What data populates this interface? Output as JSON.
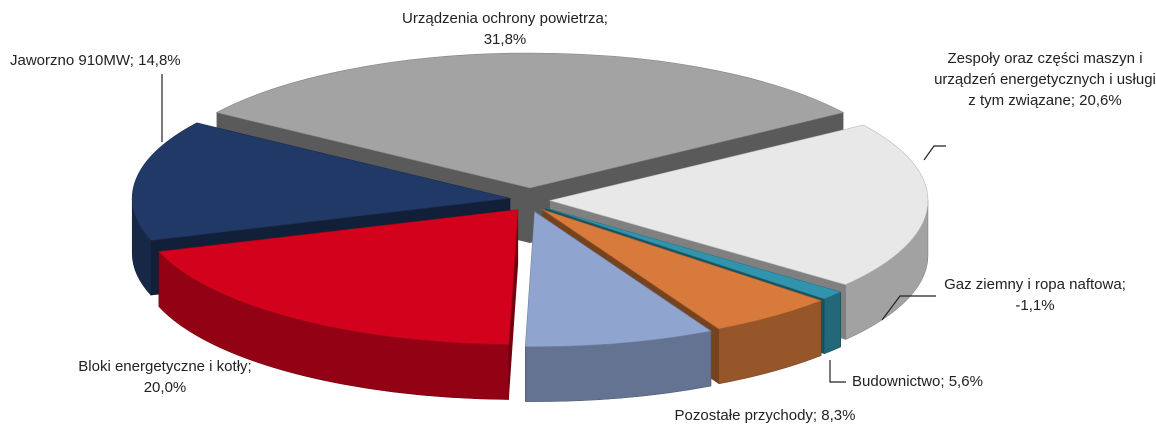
{
  "chart_data": {
    "type": "pie",
    "values": [
      31.8,
      20.6,
      -1.1,
      5.6,
      8.3,
      20.0,
      14.8
    ],
    "value_labels": [
      "Urządzenia ochrony powietrza; 31,8%",
      "Zespoły oraz części maszyn i urządzeń energetycznych i usługi z tym związane; 20,6%",
      "Gaz ziemny i ropa naftowa; -1,1%",
      "Budownictwo; 5,6%",
      "Pozostałe przychody; 8,3%",
      "Bloki energetyczne i kotły; 20,0%",
      "Jaworzno 910MW; 14,8%"
    ],
    "colors": [
      "#a3a3a3",
      "#e8e8e8",
      "#3194ad",
      "#d77a3c",
      "#8fa5cf",
      "#d2021c",
      "#213966"
    ]
  }
}
